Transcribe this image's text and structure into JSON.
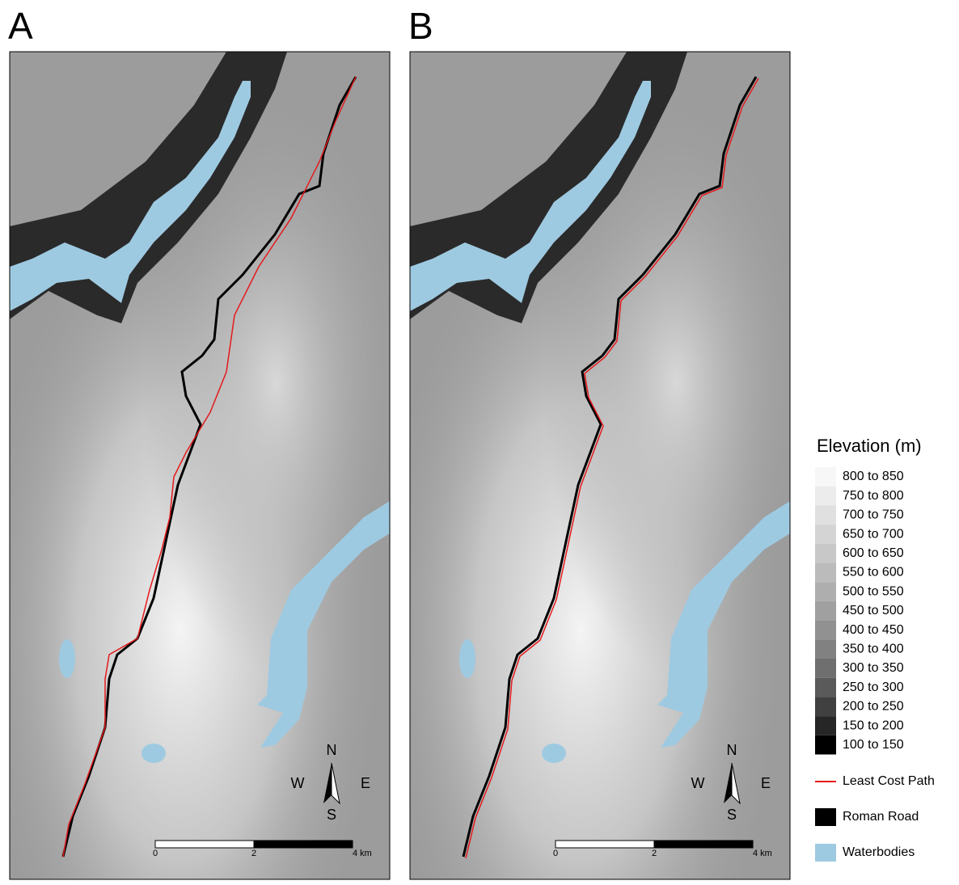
{
  "panels": [
    {
      "label": "A"
    },
    {
      "label": "B"
    }
  ],
  "compass": {
    "north": "N",
    "west": "W",
    "east": "E",
    "south": "S"
  },
  "scale_bar": {
    "labels": [
      "0",
      "2",
      "4 km"
    ]
  },
  "legend": {
    "title": "Elevation (m)",
    "classes": [
      {
        "label": "800 to 850",
        "color": "#f7f7f7"
      },
      {
        "label": "750 to 800",
        "color": "#ececec"
      },
      {
        "label": "700 to 750",
        "color": "#e0e0e0"
      },
      {
        "label": "650 to 700",
        "color": "#d4d4d4"
      },
      {
        "label": "600 to 650",
        "color": "#c8c8c8"
      },
      {
        "label": "550 to 600",
        "color": "#bbbbbb"
      },
      {
        "label": "500 to 550",
        "color": "#aeaeae"
      },
      {
        "label": "450 to 500",
        "color": "#a0a0a0"
      },
      {
        "label": "400 to 450",
        "color": "#919191"
      },
      {
        "label": "350 to 400",
        "color": "#818181"
      },
      {
        "label": "300 to 350",
        "color": "#6f6f6f"
      },
      {
        "label": "250 to 300",
        "color": "#5a5a5a"
      },
      {
        "label": "200 to 250",
        "color": "#404040"
      },
      {
        "label": "150 to 200",
        "color": "#262626"
      },
      {
        "label": "100 to 150",
        "color": "#000000"
      }
    ],
    "features": [
      {
        "label": "Least Cost Path",
        "color": "#e41a1c",
        "kind": "line"
      },
      {
        "label": "Roman Road",
        "color": "#000000",
        "kind": "box"
      },
      {
        "label": "Waterbodies",
        "color": "#9ecae1",
        "kind": "box"
      }
    ]
  }
}
